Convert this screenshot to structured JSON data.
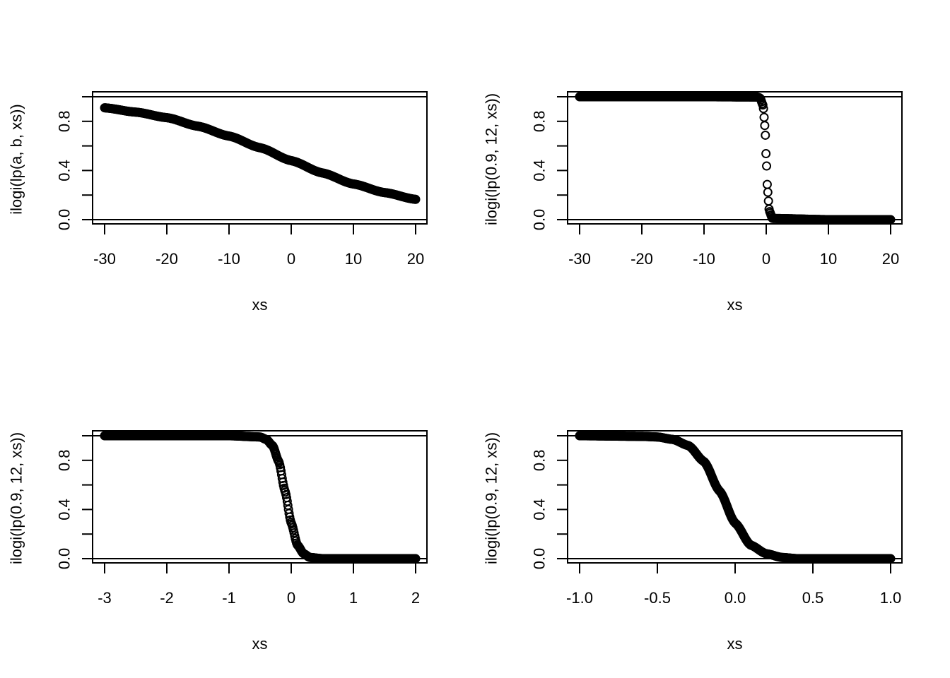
{
  "chart_data": [
    {
      "type": "scatter",
      "title": "",
      "xlabel": "xs",
      "ylabel": "ilogi(lp(a, b, xs))",
      "xlim": [
        -30,
        20
      ],
      "ylim": [
        0,
        1
      ],
      "xticks": [
        "-30",
        "-20",
        "-10",
        "0",
        "10",
        "20"
      ],
      "xtick_values": [
        -30,
        -20,
        -10,
        0,
        10,
        20
      ],
      "yticks": [
        "0.0",
        "0.4",
        "0.8"
      ],
      "ytick_values": [
        0.0,
        0.4,
        0.8
      ],
      "hlines": [
        0,
        1
      ],
      "grid": false,
      "point_count": 500,
      "series": [
        {
          "x": [
            -30,
            -25,
            -20,
            -15,
            -10,
            -5,
            0,
            5,
            10,
            15,
            20
          ],
          "y": [
            0.91,
            0.875,
            0.83,
            0.76,
            0.68,
            0.585,
            0.48,
            0.38,
            0.29,
            0.22,
            0.165
          ]
        }
      ]
    },
    {
      "type": "scatter",
      "title": "",
      "xlabel": "xs",
      "ylabel": "ilogi(lp(0.9, 12, xs))",
      "xlim": [
        -30,
        20
      ],
      "ylim": [
        0,
        1
      ],
      "xticks": [
        "-30",
        "-20",
        "-10",
        "0",
        "10",
        "20"
      ],
      "xtick_values": [
        -30,
        -20,
        -10,
        0,
        10,
        20
      ],
      "yticks": [
        "0.0",
        "0.4",
        "0.8"
      ],
      "ytick_values": [
        0.0,
        0.4,
        0.8
      ],
      "hlines": [
        0,
        1
      ],
      "grid": false,
      "point_count": 500,
      "series": [
        {
          "x": [
            -30,
            -10,
            -1.5,
            -1,
            -0.5,
            -0.2,
            0,
            0.2,
            0.5,
            1,
            10,
            20
          ],
          "y": [
            1.0,
            1.0,
            0.998,
            0.99,
            0.93,
            0.75,
            0.5,
            0.25,
            0.07,
            0.01,
            0.0,
            0.0
          ]
        }
      ]
    },
    {
      "type": "scatter",
      "title": "",
      "xlabel": "xs",
      "ylabel": "ilogi(lp(0.9, 12, xs))",
      "xlim": [
        -3,
        2
      ],
      "ylim": [
        0,
        1
      ],
      "xticks": [
        "-3",
        "-2",
        "-1",
        "0",
        "1",
        "2"
      ],
      "xtick_values": [
        -3,
        -2,
        -1,
        0,
        1,
        2
      ],
      "yticks": [
        "0.0",
        "0.4",
        "0.8"
      ],
      "ytick_values": [
        0.0,
        0.4,
        0.8
      ],
      "hlines": [
        0,
        1
      ],
      "grid": false,
      "point_count": 500,
      "series": [
        {
          "x": [
            -3,
            -1,
            -0.5,
            -0.4,
            -0.3,
            -0.2,
            -0.1,
            0,
            0.1,
            0.2,
            0.3,
            0.5,
            1,
            2
          ],
          "y": [
            1.0,
            1.0,
            0.99,
            0.97,
            0.92,
            0.79,
            0.55,
            0.29,
            0.11,
            0.04,
            0.01,
            0.0,
            0.0,
            0.0
          ]
        }
      ]
    },
    {
      "type": "scatter",
      "title": "",
      "xlabel": "xs",
      "ylabel": "ilogi(lp(0.9, 12, xs))",
      "xlim": [
        -1.0,
        1.0
      ],
      "ylim": [
        0,
        1
      ],
      "xticks": [
        "-1.0",
        "-0.5",
        "0.0",
        "0.5",
        "1.0"
      ],
      "xtick_values": [
        -1.0,
        -0.5,
        0.0,
        0.5,
        1.0
      ],
      "yticks": [
        "0.0",
        "0.4",
        "0.8"
      ],
      "ytick_values": [
        0.0,
        0.4,
        0.8
      ],
      "hlines": [
        0,
        1
      ],
      "grid": false,
      "point_count": 500,
      "series": [
        {
          "x": [
            -1.0,
            -0.6,
            -0.5,
            -0.4,
            -0.3,
            -0.2,
            -0.1,
            0.0,
            0.1,
            0.2,
            0.3,
            0.4,
            0.6,
            1.0
          ],
          "y": [
            1.0,
            0.995,
            0.99,
            0.97,
            0.92,
            0.79,
            0.55,
            0.29,
            0.11,
            0.04,
            0.01,
            0.0,
            0.0,
            0.0
          ]
        }
      ]
    }
  ]
}
